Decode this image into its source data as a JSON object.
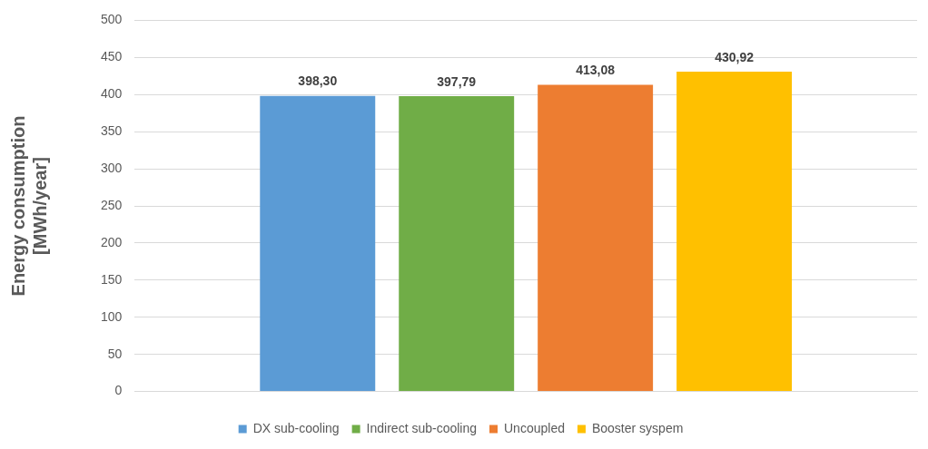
{
  "chart_data": {
    "type": "bar",
    "ylabel": "Energy consumption\n[MWh/year]",
    "categories": [
      null
    ],
    "series": [
      {
        "name": "DX sub-cooling",
        "color": "#5b9bd5",
        "values": [
          398.3
        ],
        "value_labels": [
          "398,30"
        ]
      },
      {
        "name": "Indirect sub-cooling",
        "color": "#70ad47",
        "values": [
          397.79
        ],
        "value_labels": [
          "397,79"
        ]
      },
      {
        "name": "Uncoupled",
        "color": "#ed7d31",
        "values": [
          413.08
        ],
        "value_labels": [
          "413,08"
        ]
      },
      {
        "name": "Booster syspem",
        "color": "#ffc000",
        "values": [
          430.92
        ],
        "value_labels": [
          "430,92"
        ]
      }
    ],
    "ylim": [
      0,
      500
    ],
    "yticks": [
      0,
      50,
      100,
      150,
      200,
      250,
      300,
      350,
      400,
      450,
      500
    ],
    "grid": "y",
    "legend": "bottom"
  }
}
